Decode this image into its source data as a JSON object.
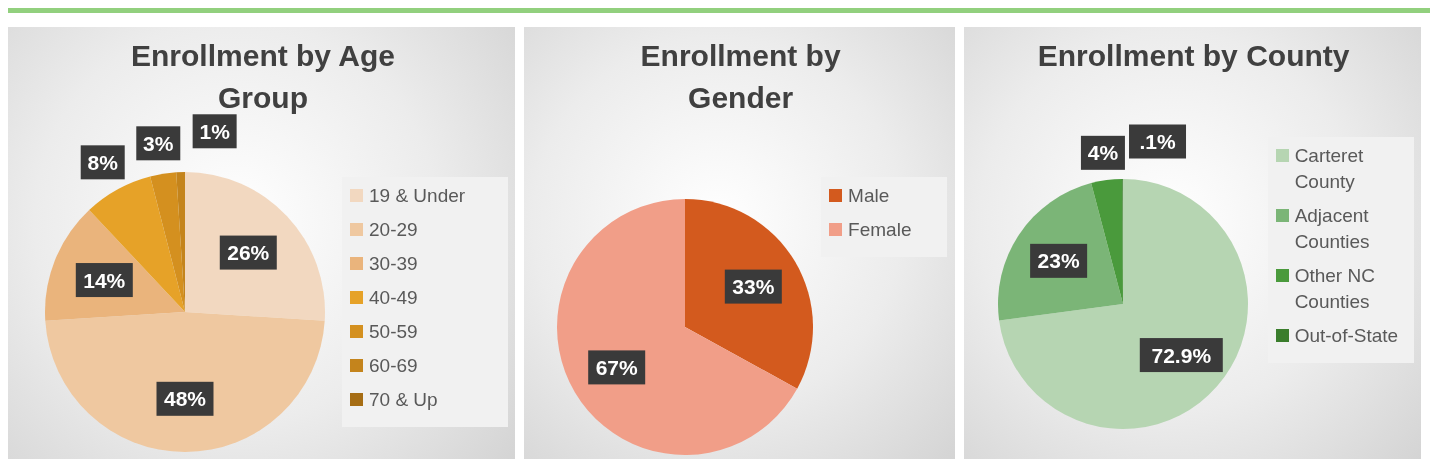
{
  "chart_data": [
    {
      "type": "pie",
      "title": "Enrollment by Age Group",
      "categories": [
        "19 & Under",
        "20-29",
        "30-39",
        "40-49",
        "50-59",
        "60-69",
        "70 & Up"
      ],
      "values": [
        26,
        48,
        14,
        8,
        3,
        1,
        0
      ],
      "value_labels": [
        "26%",
        "48%",
        "14%",
        "8%",
        "3%",
        "1%",
        null
      ],
      "colors": [
        "#f2d8c0",
        "#efc8a0",
        "#eab47c",
        "#e6a228",
        "#d4901f",
        "#c4841c",
        "#a66d14"
      ],
      "legend": "right"
    },
    {
      "type": "pie",
      "title": "Enrollment by Gender",
      "categories": [
        "Male",
        "Female"
      ],
      "values": [
        33,
        67
      ],
      "value_labels": [
        "33%",
        "67%"
      ],
      "colors": [
        "#d35a1e",
        "#f19e88"
      ],
      "legend": "right"
    },
    {
      "type": "pie",
      "title": "Enrollment by County",
      "categories": [
        "Carteret County",
        "Adjacent Counties",
        "Other NC Counties",
        "Out-of-State"
      ],
      "values": [
        72.9,
        23,
        4,
        0.1
      ],
      "value_labels": [
        "72.9%",
        "23%",
        "4%",
        ".1%"
      ],
      "colors": [
        "#b6d5b2",
        "#7bb577",
        "#4a9a3c",
        "#3a7d2c"
      ],
      "legend": "right"
    }
  ]
}
